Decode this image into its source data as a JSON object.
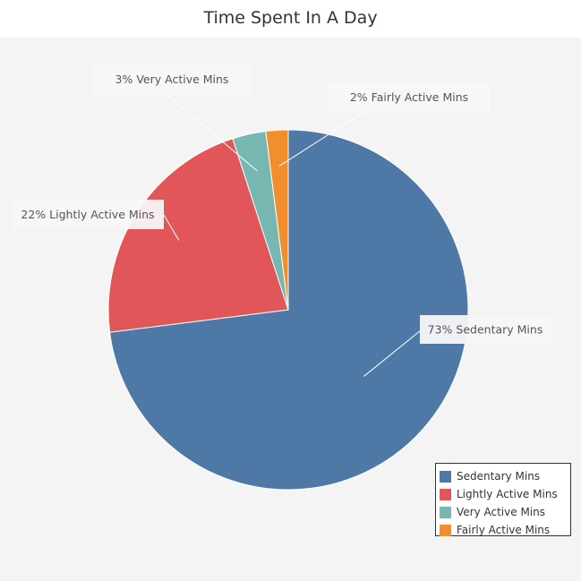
{
  "chart_data": {
    "type": "pie",
    "title": "Time Spent In A Day",
    "categories": [
      "Sedentary Mins",
      "Lightly Active Mins",
      "Very Active Mins",
      "Fairly Active Mins"
    ],
    "values": [
      73,
      22,
      3,
      2
    ],
    "colors": [
      "#4e79a7",
      "#e15759",
      "#76b7b2",
      "#f28e2b"
    ],
    "data_labels": [
      "73% Sedentary Mins",
      "22% Lightly Active Mins",
      "3% Very Active Mins",
      "2% Fairly Active Mins"
    ],
    "legend_placement": "bottom-right"
  }
}
